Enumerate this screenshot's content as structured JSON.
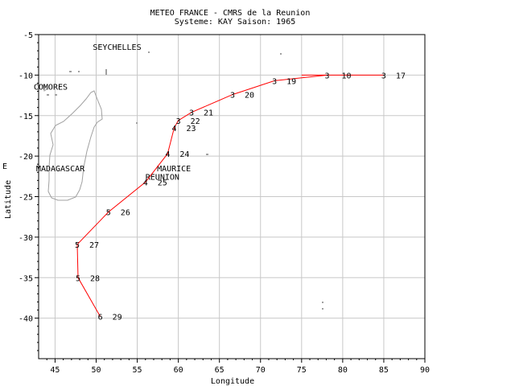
{
  "title": "METEO FRANCE - CMRS de la Reunion",
  "subtitle": "Systeme: KAY  Saison: 1965",
  "chart_data": {
    "type": "scatter",
    "xlabel": "Longitude",
    "ylabel": "Latitude",
    "side_label": "E",
    "xlim": [
      43,
      90
    ],
    "ylim": [
      -45,
      -5
    ],
    "x_ticks": [
      "45",
      "50",
      "55",
      "60",
      "65",
      "70",
      "75",
      "80",
      "85",
      "90"
    ],
    "y_ticks": [
      "-5",
      "-10",
      "-15",
      "-20",
      "-25",
      "-30",
      "-35",
      "-40"
    ],
    "grid": true,
    "track_color": "#ff0000",
    "land_color": "#a0a0a0",
    "places": [
      {
        "name": "SEYCHELLES",
        "lon": 49.6,
        "lat": -6.5
      },
      {
        "name": "COMORES",
        "lon": 42.4,
        "lat": -11.4
      },
      {
        "name": "MADAGASCAR",
        "lon": 42.7,
        "lat": -21.5
      },
      {
        "name": "MAURICE",
        "lon": 57.4,
        "lat": -21.5
      },
      {
        "name": "REUNION",
        "lon": 56.0,
        "lat": -22.5
      }
    ],
    "track": [
      {
        "lon": 85.0,
        "lat": -10.0,
        "intensity": "3",
        "day": "17"
      },
      {
        "lon": 78.1,
        "lat": -10.0,
        "intensity": "3",
        "day": "18"
      },
      {
        "lon": 71.7,
        "lat": -10.7,
        "intensity": "3",
        "day": "19"
      },
      {
        "lon": 66.6,
        "lat": -12.4,
        "intensity": "3",
        "day": "20"
      },
      {
        "lon": 61.6,
        "lat": -14.6,
        "intensity": "3",
        "day": "21"
      },
      {
        "lon": 60.0,
        "lat": -15.6,
        "intensity": "3",
        "day": "22"
      },
      {
        "lon": 59.5,
        "lat": -16.5,
        "intensity": "4",
        "day": "23"
      },
      {
        "lon": 58.7,
        "lat": -19.7,
        "intensity": "4",
        "day": "24"
      },
      {
        "lon": 56.0,
        "lat": -23.2,
        "intensity": "4",
        "day": "25"
      },
      {
        "lon": 51.5,
        "lat": -26.9,
        "intensity": "5",
        "day": "26"
      },
      {
        "lon": 47.7,
        "lat": -30.9,
        "intensity": "5",
        "day": "27"
      },
      {
        "lon": 47.8,
        "lat": -35.0,
        "intensity": "5",
        "day": "28"
      },
      {
        "lon": 50.5,
        "lat": -39.8,
        "intensity": "6",
        "day": "29"
      }
    ]
  }
}
